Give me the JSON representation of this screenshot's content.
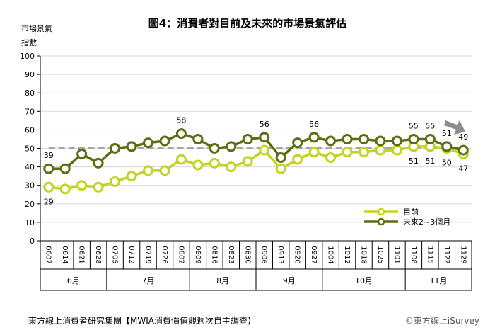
{
  "chart_data": {
    "type": "line",
    "title": "圖4：消費者對目前及未來的市場景氣評估",
    "ylabel_line1": "市場景氣",
    "ylabel_line2": "指數",
    "ylim": [
      0,
      100
    ],
    "yticks": [
      0,
      10,
      20,
      30,
      40,
      50,
      60,
      70,
      80,
      90,
      100
    ],
    "reference_line": 50,
    "categories": [
      "0607",
      "0614",
      "0621",
      "0628",
      "0705",
      "0712",
      "0719",
      "0726",
      "0802",
      "0809",
      "0816",
      "0823",
      "0830",
      "0906",
      "0913",
      "0920",
      "0927",
      "1004",
      "1012",
      "1018",
      "1025",
      "1101",
      "1108",
      "1115",
      "1122",
      "1129"
    ],
    "months": [
      {
        "label": "6月",
        "start": 0,
        "end": 3
      },
      {
        "label": "7月",
        "start": 4,
        "end": 8
      },
      {
        "label": "8月",
        "start": 9,
        "end": 12
      },
      {
        "label": "9月",
        "start": 13,
        "end": 16
      },
      {
        "label": "10月",
        "start": 17,
        "end": 21
      },
      {
        "label": "11月",
        "start": 22,
        "end": 25
      }
    ],
    "series": [
      {
        "name": "目前",
        "color": "#c2d41f",
        "values": [
          29,
          28,
          30,
          29,
          32,
          35,
          38,
          38,
          44,
          41,
          42,
          40,
          43,
          49,
          39,
          44,
          48,
          45,
          48,
          48,
          49,
          49,
          51,
          51,
          50,
          47
        ],
        "labels": {
          "0": "29",
          "22": "51",
          "23": "51",
          "24": "50",
          "25": "47"
        }
      },
      {
        "name": "未來2~3個月",
        "color": "#5b6e12",
        "values": [
          39,
          39,
          47,
          42,
          50,
          51,
          53,
          54,
          58,
          55,
          50,
          51,
          55,
          56,
          45,
          53,
          56,
          54,
          55,
          55,
          54,
          54,
          55,
          55,
          51,
          49
        ],
        "labels": {
          "0": "39",
          "8": "58",
          "13": "56",
          "16": "56",
          "22": "55",
          "23": "55",
          "24": "51",
          "25": "49"
        }
      }
    ],
    "legend_position": "bottom-right"
  },
  "footer": {
    "source": "東方線上消費者研究集團【MWIA消費價值觀週次自主調查】",
    "credit": "©東方線上iSurvey"
  },
  "colors": {
    "reference": "#a6a6a6",
    "arrow": "#8c8c8c",
    "grid": "#d9d9d9"
  }
}
